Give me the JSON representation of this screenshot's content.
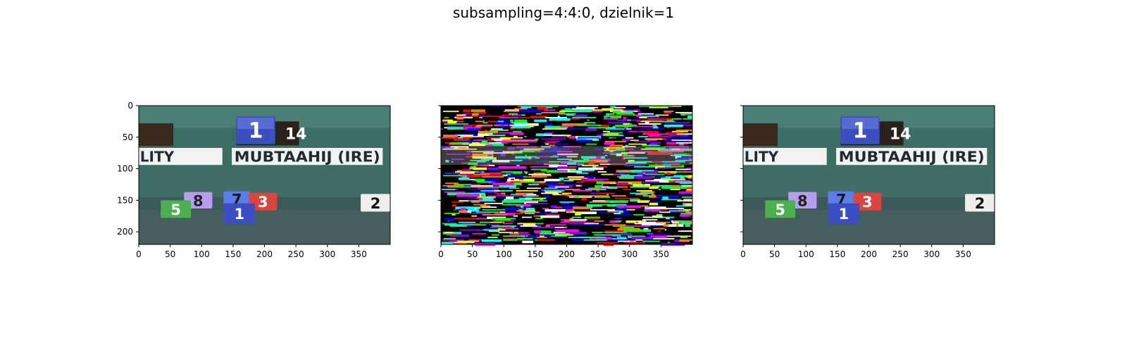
{
  "figure": {
    "title": "subsampling=4:4:0, dzielnik=1"
  },
  "chart_data": [
    {
      "type": "image",
      "panel": "original",
      "xlim": [
        0,
        400
      ],
      "ylim": [
        220,
        0
      ],
      "xticks": [
        0,
        50,
        100,
        150,
        200,
        250,
        300,
        350
      ],
      "yticks": [
        0,
        50,
        100,
        150,
        200
      ],
      "show_yticklabels": true,
      "content": {
        "saddle_top_number": "1",
        "saddle_top_text": "14",
        "name_left": "LITY",
        "name_main": "MUBTAAHIJ (IRE)",
        "tag_8": "8",
        "tag_5": "5",
        "tag_7": "7",
        "tag_3": "3",
        "tag_1": "1",
        "tag_2": "2"
      }
    },
    {
      "type": "image",
      "panel": "difference-noise",
      "xlim": [
        0,
        400
      ],
      "ylim": [
        220,
        0
      ],
      "xticks": [
        0,
        50,
        100,
        150,
        200,
        250,
        300,
        350
      ],
      "yticks": [
        0,
        50,
        100,
        150,
        200
      ],
      "show_yticklabels": false
    },
    {
      "type": "image",
      "panel": "reconstructed",
      "xlim": [
        0,
        400
      ],
      "ylim": [
        220,
        0
      ],
      "xticks": [
        0,
        50,
        100,
        150,
        200,
        250,
        300,
        350
      ],
      "yticks": [
        0,
        50,
        100,
        150,
        200
      ],
      "show_yticklabels": false,
      "content": {
        "saddle_top_number": "1",
        "saddle_top_text": "14",
        "name_left": "LITY",
        "name_main": "MUBTAAHIJ (IRE)",
        "tag_8": "8",
        "tag_5": "5",
        "tag_7": "7",
        "tag_3": "3",
        "tag_1": "1",
        "tag_2": "2"
      }
    }
  ]
}
